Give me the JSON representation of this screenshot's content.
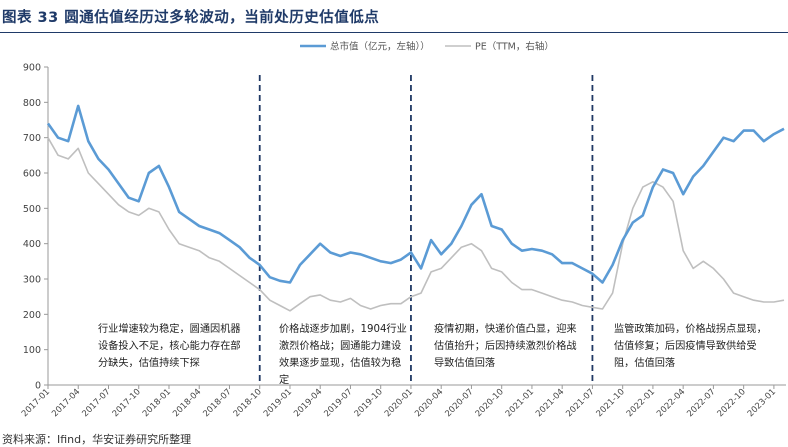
{
  "figure_title": "图表 33  圆通估值经历过多轮波动，当前处历史估值低点",
  "source_note": "资料来源：Ifind，华安证券研究所整理",
  "colors": {
    "market_cap": "#5b9bd5",
    "pe": "#bfbfbf",
    "divider": "#1f3864",
    "title": "#1f3a68"
  },
  "annotations": [
    "行业增速较为稳定，圆通因机器设备投入不足，核心能力存在部分缺失，估值持续下探",
    "价格战逐步加剧，1904行业激烈价格战；圆通能力建设效果逐步显现，估值较为稳定",
    "疫情初期，快递价值凸显，迎来估值抬升；后因持续激烈价格战导致估值回落",
    "监管政策加码，价格战拐点显现，估值修复；后因疫情导致供给受阻，估值回落"
  ],
  "chart_data": {
    "type": "line",
    "title": "",
    "xlabel": "",
    "ylabel": "",
    "ylim": [
      0,
      900
    ],
    "yticks": [
      0,
      100,
      200,
      300,
      400,
      500,
      600,
      700,
      800,
      900
    ],
    "x_tick_labels": [
      "2017-01",
      "2017-04",
      "2017-07",
      "2017-10",
      "2018-01",
      "2018-04",
      "2018-07",
      "2018-10",
      "2019-01",
      "2019-04",
      "2019-07",
      "2019-10",
      "2020-01",
      "2020-04",
      "2020-07",
      "2020-10",
      "2021-01",
      "2021-04",
      "2021-07",
      "2021-10",
      "2022-01",
      "2022-04",
      "2022-07",
      "2022-10",
      "2023-01"
    ],
    "grid": false,
    "legend_position": "top",
    "dividers": [
      "2018-10",
      "2020-01",
      "2021-07"
    ],
    "series": [
      {
        "name": "总市值（亿元，左轴））",
        "color": "#5b9bd5",
        "points": [
          [
            "2017-01",
            740
          ],
          [
            "2017-02",
            700
          ],
          [
            "2017-03",
            690
          ],
          [
            "2017-04",
            790
          ],
          [
            "2017-05",
            690
          ],
          [
            "2017-06",
            640
          ],
          [
            "2017-07",
            610
          ],
          [
            "2017-08",
            570
          ],
          [
            "2017-09",
            530
          ],
          [
            "2017-10",
            520
          ],
          [
            "2017-11",
            600
          ],
          [
            "2017-12",
            620
          ],
          [
            "2018-01",
            560
          ],
          [
            "2018-02",
            490
          ],
          [
            "2018-03",
            470
          ],
          [
            "2018-04",
            450
          ],
          [
            "2018-05",
            440
          ],
          [
            "2018-06",
            430
          ],
          [
            "2018-07",
            410
          ],
          [
            "2018-08",
            390
          ],
          [
            "2018-09",
            360
          ],
          [
            "2018-10",
            340
          ],
          [
            "2018-11",
            305
          ],
          [
            "2018-12",
            295
          ],
          [
            "2019-01",
            290
          ],
          [
            "2019-02",
            340
          ],
          [
            "2019-03",
            370
          ],
          [
            "2019-04",
            400
          ],
          [
            "2019-05",
            375
          ],
          [
            "2019-06",
            365
          ],
          [
            "2019-07",
            375
          ],
          [
            "2019-08",
            370
          ],
          [
            "2019-09",
            360
          ],
          [
            "2019-10",
            350
          ],
          [
            "2019-11",
            345
          ],
          [
            "2019-12",
            355
          ],
          [
            "2020-01",
            375
          ],
          [
            "2020-02",
            330
          ],
          [
            "2020-03",
            410
          ],
          [
            "2020-04",
            370
          ],
          [
            "2020-05",
            400
          ],
          [
            "2020-06",
            450
          ],
          [
            "2020-07",
            510
          ],
          [
            "2020-08",
            540
          ],
          [
            "2020-09",
            450
          ],
          [
            "2020-10",
            440
          ],
          [
            "2020-11",
            400
          ],
          [
            "2020-12",
            380
          ],
          [
            "2021-01",
            385
          ],
          [
            "2021-02",
            380
          ],
          [
            "2021-03",
            370
          ],
          [
            "2021-04",
            345
          ],
          [
            "2021-05",
            345
          ],
          [
            "2021-06",
            330
          ],
          [
            "2021-07",
            315
          ],
          [
            "2021-08",
            290
          ],
          [
            "2021-09",
            340
          ],
          [
            "2021-10",
            410
          ],
          [
            "2021-11",
            460
          ],
          [
            "2021-12",
            480
          ],
          [
            "2022-01",
            560
          ],
          [
            "2022-02",
            610
          ],
          [
            "2022-03",
            600
          ],
          [
            "2022-04",
            540
          ],
          [
            "2022-05",
            590
          ],
          [
            "2022-06",
            620
          ],
          [
            "2022-07",
            660
          ],
          [
            "2022-08",
            700
          ],
          [
            "2022-09",
            690
          ],
          [
            "2022-10",
            720
          ],
          [
            "2022-11",
            720
          ],
          [
            "2022-12",
            690
          ],
          [
            "2023-01",
            710
          ],
          [
            "2023-02",
            725
          ]
        ]
      },
      {
        "name": "PE（TTM，右轴）",
        "color": "#bfbfbf",
        "points": [
          [
            "2017-01",
            700
          ],
          [
            "2017-02",
            650
          ],
          [
            "2017-03",
            640
          ],
          [
            "2017-04",
            670
          ],
          [
            "2017-05",
            600
          ],
          [
            "2017-06",
            570
          ],
          [
            "2017-07",
            540
          ],
          [
            "2017-08",
            510
          ],
          [
            "2017-09",
            490
          ],
          [
            "2017-10",
            480
          ],
          [
            "2017-11",
            500
          ],
          [
            "2017-12",
            490
          ],
          [
            "2018-01",
            440
          ],
          [
            "2018-02",
            400
          ],
          [
            "2018-03",
            390
          ],
          [
            "2018-04",
            380
          ],
          [
            "2018-05",
            360
          ],
          [
            "2018-06",
            350
          ],
          [
            "2018-07",
            330
          ],
          [
            "2018-08",
            310
          ],
          [
            "2018-09",
            290
          ],
          [
            "2018-10",
            270
          ],
          [
            "2018-11",
            240
          ],
          [
            "2018-12",
            225
          ],
          [
            "2019-01",
            210
          ],
          [
            "2019-02",
            230
          ],
          [
            "2019-03",
            250
          ],
          [
            "2019-04",
            255
          ],
          [
            "2019-05",
            240
          ],
          [
            "2019-06",
            235
          ],
          [
            "2019-07",
            245
          ],
          [
            "2019-08",
            225
          ],
          [
            "2019-09",
            215
          ],
          [
            "2019-10",
            225
          ],
          [
            "2019-11",
            230
          ],
          [
            "2019-12",
            230
          ],
          [
            "2020-01",
            250
          ],
          [
            "2020-02",
            260
          ],
          [
            "2020-03",
            320
          ],
          [
            "2020-04",
            330
          ],
          [
            "2020-05",
            360
          ],
          [
            "2020-06",
            390
          ],
          [
            "2020-07",
            400
          ],
          [
            "2020-08",
            380
          ],
          [
            "2020-09",
            330
          ],
          [
            "2020-10",
            320
          ],
          [
            "2020-11",
            290
          ],
          [
            "2020-12",
            270
          ],
          [
            "2021-01",
            270
          ],
          [
            "2021-02",
            260
          ],
          [
            "2021-03",
            250
          ],
          [
            "2021-04",
            240
          ],
          [
            "2021-05",
            235
          ],
          [
            "2021-06",
            225
          ],
          [
            "2021-07",
            220
          ],
          [
            "2021-08",
            215
          ],
          [
            "2021-09",
            260
          ],
          [
            "2021-10",
            400
          ],
          [
            "2021-11",
            500
          ],
          [
            "2021-12",
            560
          ],
          [
            "2022-01",
            575
          ],
          [
            "2022-02",
            560
          ],
          [
            "2022-03",
            520
          ],
          [
            "2022-04",
            380
          ],
          [
            "2022-05",
            330
          ],
          [
            "2022-06",
            350
          ],
          [
            "2022-07",
            330
          ],
          [
            "2022-08",
            300
          ],
          [
            "2022-09",
            260
          ],
          [
            "2022-10",
            250
          ],
          [
            "2022-11",
            240
          ],
          [
            "2022-12",
            235
          ],
          [
            "2023-01",
            235
          ],
          [
            "2023-02",
            240
          ]
        ]
      }
    ]
  }
}
